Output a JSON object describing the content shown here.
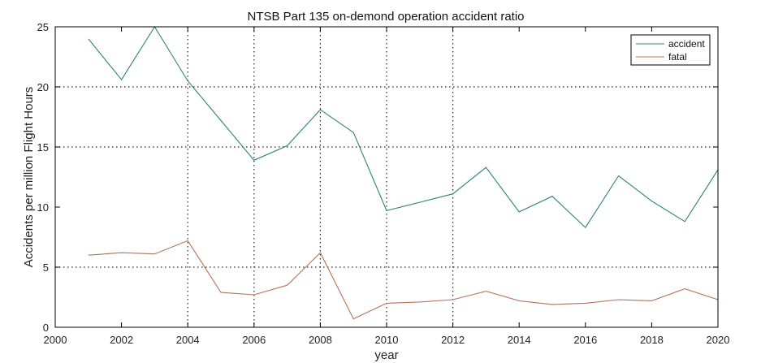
{
  "chart_data": {
    "type": "line",
    "title": "NTSB Part 135 on-demond operation accident ratio",
    "xlabel": "year",
    "ylabel": "Accidents per million Flight Hours",
    "xlim": [
      2000,
      2020
    ],
    "ylim": [
      0,
      25
    ],
    "xticks": [
      2000,
      2002,
      2004,
      2006,
      2008,
      2010,
      2012,
      2014,
      2016,
      2018,
      2020
    ],
    "yticks": [
      0,
      5,
      10,
      15,
      20,
      25
    ],
    "grid": "dotted",
    "grid_x": [
      2004,
      2006,
      2008,
      2010,
      2012
    ],
    "grid_y": [
      5,
      15,
      20
    ],
    "legend_position": "top-right",
    "x": [
      2001,
      2002,
      2003,
      2004,
      2005,
      2006,
      2007,
      2008,
      2009,
      2010,
      2011,
      2012,
      2013,
      2014,
      2015,
      2016,
      2017,
      2018,
      2019,
      2020
    ],
    "series": [
      {
        "name": "accident",
        "color": "#2f7f7a",
        "values": [
          24.0,
          20.6,
          25.0,
          20.5,
          17.2,
          13.9,
          15.1,
          18.1,
          16.2,
          9.7,
          10.4,
          11.1,
          13.3,
          9.6,
          10.9,
          8.3,
          12.6,
          10.5,
          8.8,
          13.1
        ]
      },
      {
        "name": "fatal",
        "color": "#b5745a",
        "values": [
          6.0,
          6.2,
          6.1,
          7.2,
          2.9,
          2.7,
          3.5,
          6.2,
          0.7,
          2.0,
          2.1,
          2.3,
          3.0,
          2.2,
          1.9,
          2.0,
          2.3,
          2.2,
          3.2,
          2.3
        ]
      }
    ]
  }
}
